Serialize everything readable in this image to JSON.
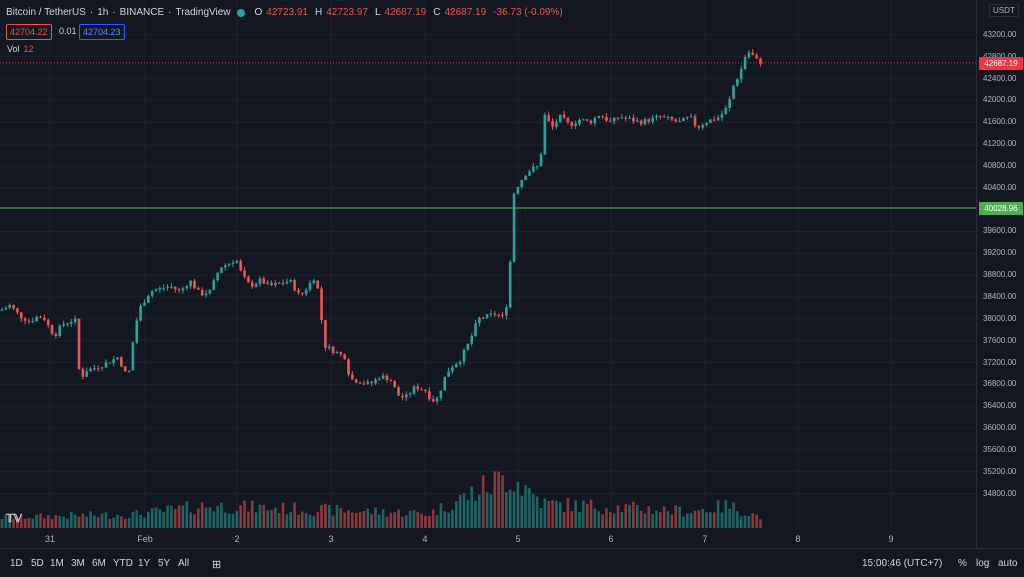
{
  "legend": {
    "symbol": "Bitcoin / TetherUS",
    "interval": "1h",
    "exchange": "BINANCE",
    "source": "TradingView",
    "open_label": "O",
    "open": "42723.91",
    "high_label": "H",
    "high": "42723.97",
    "low_label": "L",
    "low": "42687.19",
    "close_label": "C",
    "close": "42687.19",
    "change": "-36.73 (-0.09%)",
    "sell_price": "42704.22",
    "spread": "0.01",
    "buy_price": "42704.23",
    "volume_label": "Vol",
    "volume_value": "12"
  },
  "price_axis": {
    "currency": "USDT",
    "ticks": [
      "43200.00",
      "42800.00",
      "42400.00",
      "42000.00",
      "41600.00",
      "41200.00",
      "40800.00",
      "40400.00",
      "39600.00",
      "39200.00",
      "38800.00",
      "38400.00",
      "38000.00",
      "37600.00",
      "37200.00",
      "36800.00",
      "36400.00",
      "36000.00",
      "35600.00",
      "35200.00",
      "34800.00"
    ],
    "last_price_label": "42687.19",
    "horizontal_line_label": "40028.96"
  },
  "time_axis": {
    "ticks": [
      "31",
      "Feb",
      "2",
      "3",
      "4",
      "5",
      "6",
      "7",
      "8",
      "9"
    ]
  },
  "bottom_bar": {
    "ranges": [
      "1D",
      "5D",
      "1M",
      "3M",
      "6M",
      "YTD",
      "1Y",
      "5Y",
      "All"
    ],
    "clock": "15:00:46 (UTC+7)",
    "percent": "%",
    "log": "log",
    "auto": "auto"
  },
  "colors": {
    "up": "#26a69a",
    "down": "#ef5350",
    "background": "#131722",
    "hline": "#4caf50",
    "last_price": "#f23645"
  },
  "chart_data": {
    "type": "candlestick",
    "series": [
      {
        "name": "Bitcoin / TetherUS",
        "values": []
      }
    ],
    "keypoints_close": [
      [
        0,
        38150
      ],
      [
        10,
        38250
      ],
      [
        20,
        38050
      ],
      [
        30,
        37950
      ],
      [
        38,
        38050
      ],
      [
        45,
        38000
      ],
      [
        50,
        37800
      ],
      [
        55,
        37700
      ],
      [
        62,
        37900
      ],
      [
        70,
        37950
      ],
      [
        75,
        38000
      ],
      [
        80,
        36850
      ],
      [
        85,
        37050
      ],
      [
        95,
        37100
      ],
      [
        108,
        37200
      ],
      [
        118,
        37300
      ],
      [
        128,
        36900
      ],
      [
        135,
        37850
      ],
      [
        140,
        38200
      ],
      [
        150,
        38500
      ],
      [
        160,
        38550
      ],
      [
        170,
        38600
      ],
      [
        180,
        38500
      ],
      [
        190,
        38700
      ],
      [
        200,
        38450
      ],
      [
        210,
        38500
      ],
      [
        220,
        38950
      ],
      [
        228,
        39000
      ],
      [
        236,
        39100
      ],
      [
        242,
        38800
      ],
      [
        250,
        38600
      ],
      [
        260,
        38700
      ],
      [
        270,
        38600
      ],
      [
        280,
        38650
      ],
      [
        290,
        38700
      ],
      [
        300,
        38400
      ],
      [
        308,
        38600
      ],
      [
        316,
        38800
      ],
      [
        320,
        38200
      ],
      [
        325,
        37500
      ],
      [
        335,
        37400
      ],
      [
        345,
        37300
      ],
      [
        350,
        36900
      ],
      [
        360,
        36850
      ],
      [
        370,
        36800
      ],
      [
        380,
        36950
      ],
      [
        390,
        36900
      ],
      [
        398,
        36600
      ],
      [
        405,
        36550
      ],
      [
        415,
        36750
      ],
      [
        425,
        36700
      ],
      [
        432,
        36500
      ],
      [
        438,
        36550
      ],
      [
        444,
        36900
      ],
      [
        450,
        37100
      ],
      [
        460,
        37250
      ],
      [
        470,
        37600
      ],
      [
        478,
        38000
      ],
      [
        488,
        38050
      ],
      [
        497,
        38100
      ],
      [
        502,
        38000
      ],
      [
        508,
        38350
      ],
      [
        511,
        39300
      ],
      [
        514,
        40300
      ],
      [
        518,
        40450
      ],
      [
        525,
        40650
      ],
      [
        532,
        40750
      ],
      [
        540,
        40800
      ],
      [
        544,
        41750
      ],
      [
        552,
        41500
      ],
      [
        560,
        41700
      ],
      [
        570,
        41550
      ],
      [
        580,
        41650
      ],
      [
        590,
        41600
      ],
      [
        600,
        41750
      ],
      [
        610,
        41600
      ],
      [
        620,
        41700
      ],
      [
        630,
        41650
      ],
      [
        640,
        41600
      ],
      [
        650,
        41650
      ],
      [
        660,
        41700
      ],
      [
        670,
        41650
      ],
      [
        680,
        41600
      ],
      [
        690,
        41700
      ],
      [
        697,
        41500
      ],
      [
        705,
        41600
      ],
      [
        712,
        41650
      ],
      [
        720,
        41700
      ],
      [
        728,
        41900
      ],
      [
        734,
        42300
      ],
      [
        740,
        42500
      ],
      [
        745,
        42800
      ],
      [
        750,
        42900
      ],
      [
        755,
        42750
      ],
      [
        762,
        42690
      ]
    ],
    "volume_keypoints": [
      [
        0,
        1
      ],
      [
        135,
        1.4
      ],
      [
        205,
        2.5
      ],
      [
        320,
        2
      ],
      [
        430,
        1.5
      ],
      [
        510,
        6.5
      ],
      [
        545,
        2.8
      ],
      [
        690,
        1.8
      ],
      [
        728,
        2.5
      ],
      [
        762,
        1
      ]
    ],
    "ylim": [
      34700,
      43400
    ],
    "last_price": 42687.19,
    "horizontal_line": 40028.96
  }
}
